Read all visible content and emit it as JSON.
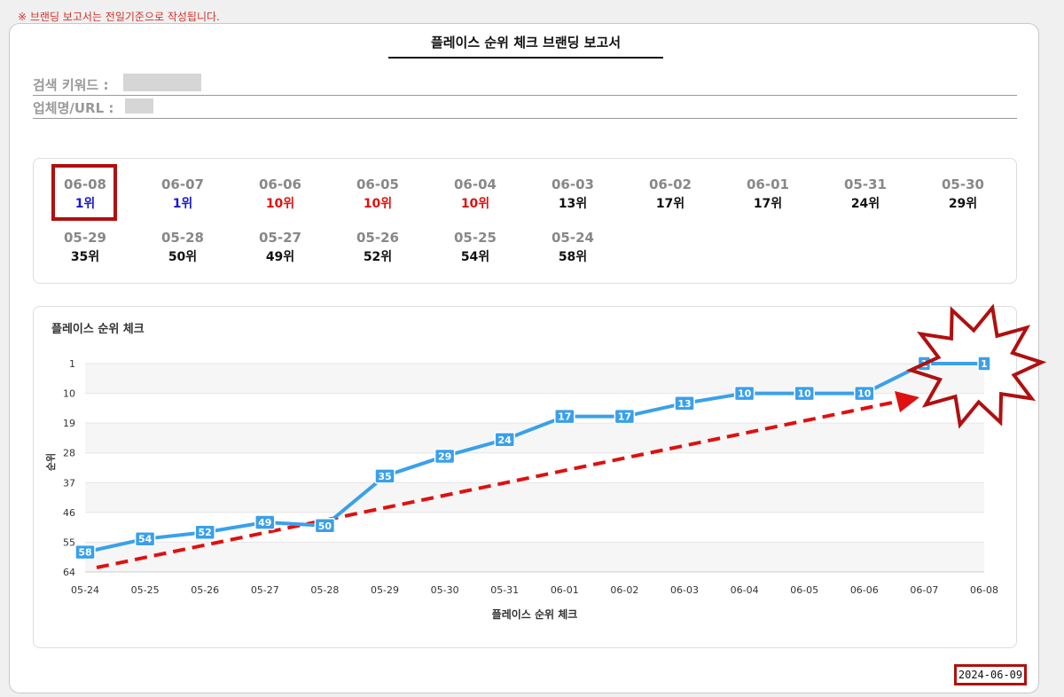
{
  "notice": "※ 브랜딩 보고서는 전일기준으로 작성됩니다.",
  "report": {
    "title": "플레이스 순위 체크 브랜딩 보고서",
    "keyword_label": "검색 키워드 :",
    "business_label": "업체명/URL :",
    "report_date": "2024-06-09"
  },
  "rank_list": [
    {
      "date": "06-08",
      "rank": "1위",
      "color": "#1a1ad0"
    },
    {
      "date": "06-07",
      "rank": "1위",
      "color": "#1a1ad0"
    },
    {
      "date": "06-06",
      "rank": "10위",
      "color": "#e01010"
    },
    {
      "date": "06-05",
      "rank": "10위",
      "color": "#e01010"
    },
    {
      "date": "06-04",
      "rank": "10위",
      "color": "#e01010"
    },
    {
      "date": "06-03",
      "rank": "13위",
      "color": "#111111"
    },
    {
      "date": "06-02",
      "rank": "17위",
      "color": "#111111"
    },
    {
      "date": "06-01",
      "rank": "17위",
      "color": "#111111"
    },
    {
      "date": "05-31",
      "rank": "24위",
      "color": "#111111"
    },
    {
      "date": "05-30",
      "rank": "29위",
      "color": "#111111"
    },
    {
      "date": "05-29",
      "rank": "35위",
      "color": "#111111"
    },
    {
      "date": "05-28",
      "rank": "50위",
      "color": "#111111"
    },
    {
      "date": "05-27",
      "rank": "49위",
      "color": "#111111"
    },
    {
      "date": "05-26",
      "rank": "52위",
      "color": "#111111"
    },
    {
      "date": "05-25",
      "rank": "54위",
      "color": "#111111"
    },
    {
      "date": "05-24",
      "rank": "58위",
      "color": "#111111"
    }
  ],
  "chart_data": {
    "type": "line",
    "title": "플레이스 순위 체크",
    "xlabel": "플레이스 순위 체크",
    "ylabel": "순위",
    "y_reversed": true,
    "ylim": [
      64,
      1
    ],
    "yticks": [
      1,
      10,
      19,
      28,
      37,
      46,
      55,
      64
    ],
    "x": [
      "05-24",
      "05-25",
      "05-26",
      "05-27",
      "05-28",
      "05-29",
      "05-30",
      "05-31",
      "06-01",
      "06-02",
      "06-03",
      "06-04",
      "06-05",
      "06-06",
      "06-07",
      "06-08"
    ],
    "series": [
      {
        "values": [
          58,
          54,
          52,
          49,
          50,
          35,
          29,
          24,
          17,
          17,
          13,
          10,
          10,
          10,
          1,
          1
        ]
      }
    ],
    "line_color": "#3aa0ea",
    "trend_arrow_color": "#e01010",
    "burst_color": "#b01010",
    "grid": true
  }
}
